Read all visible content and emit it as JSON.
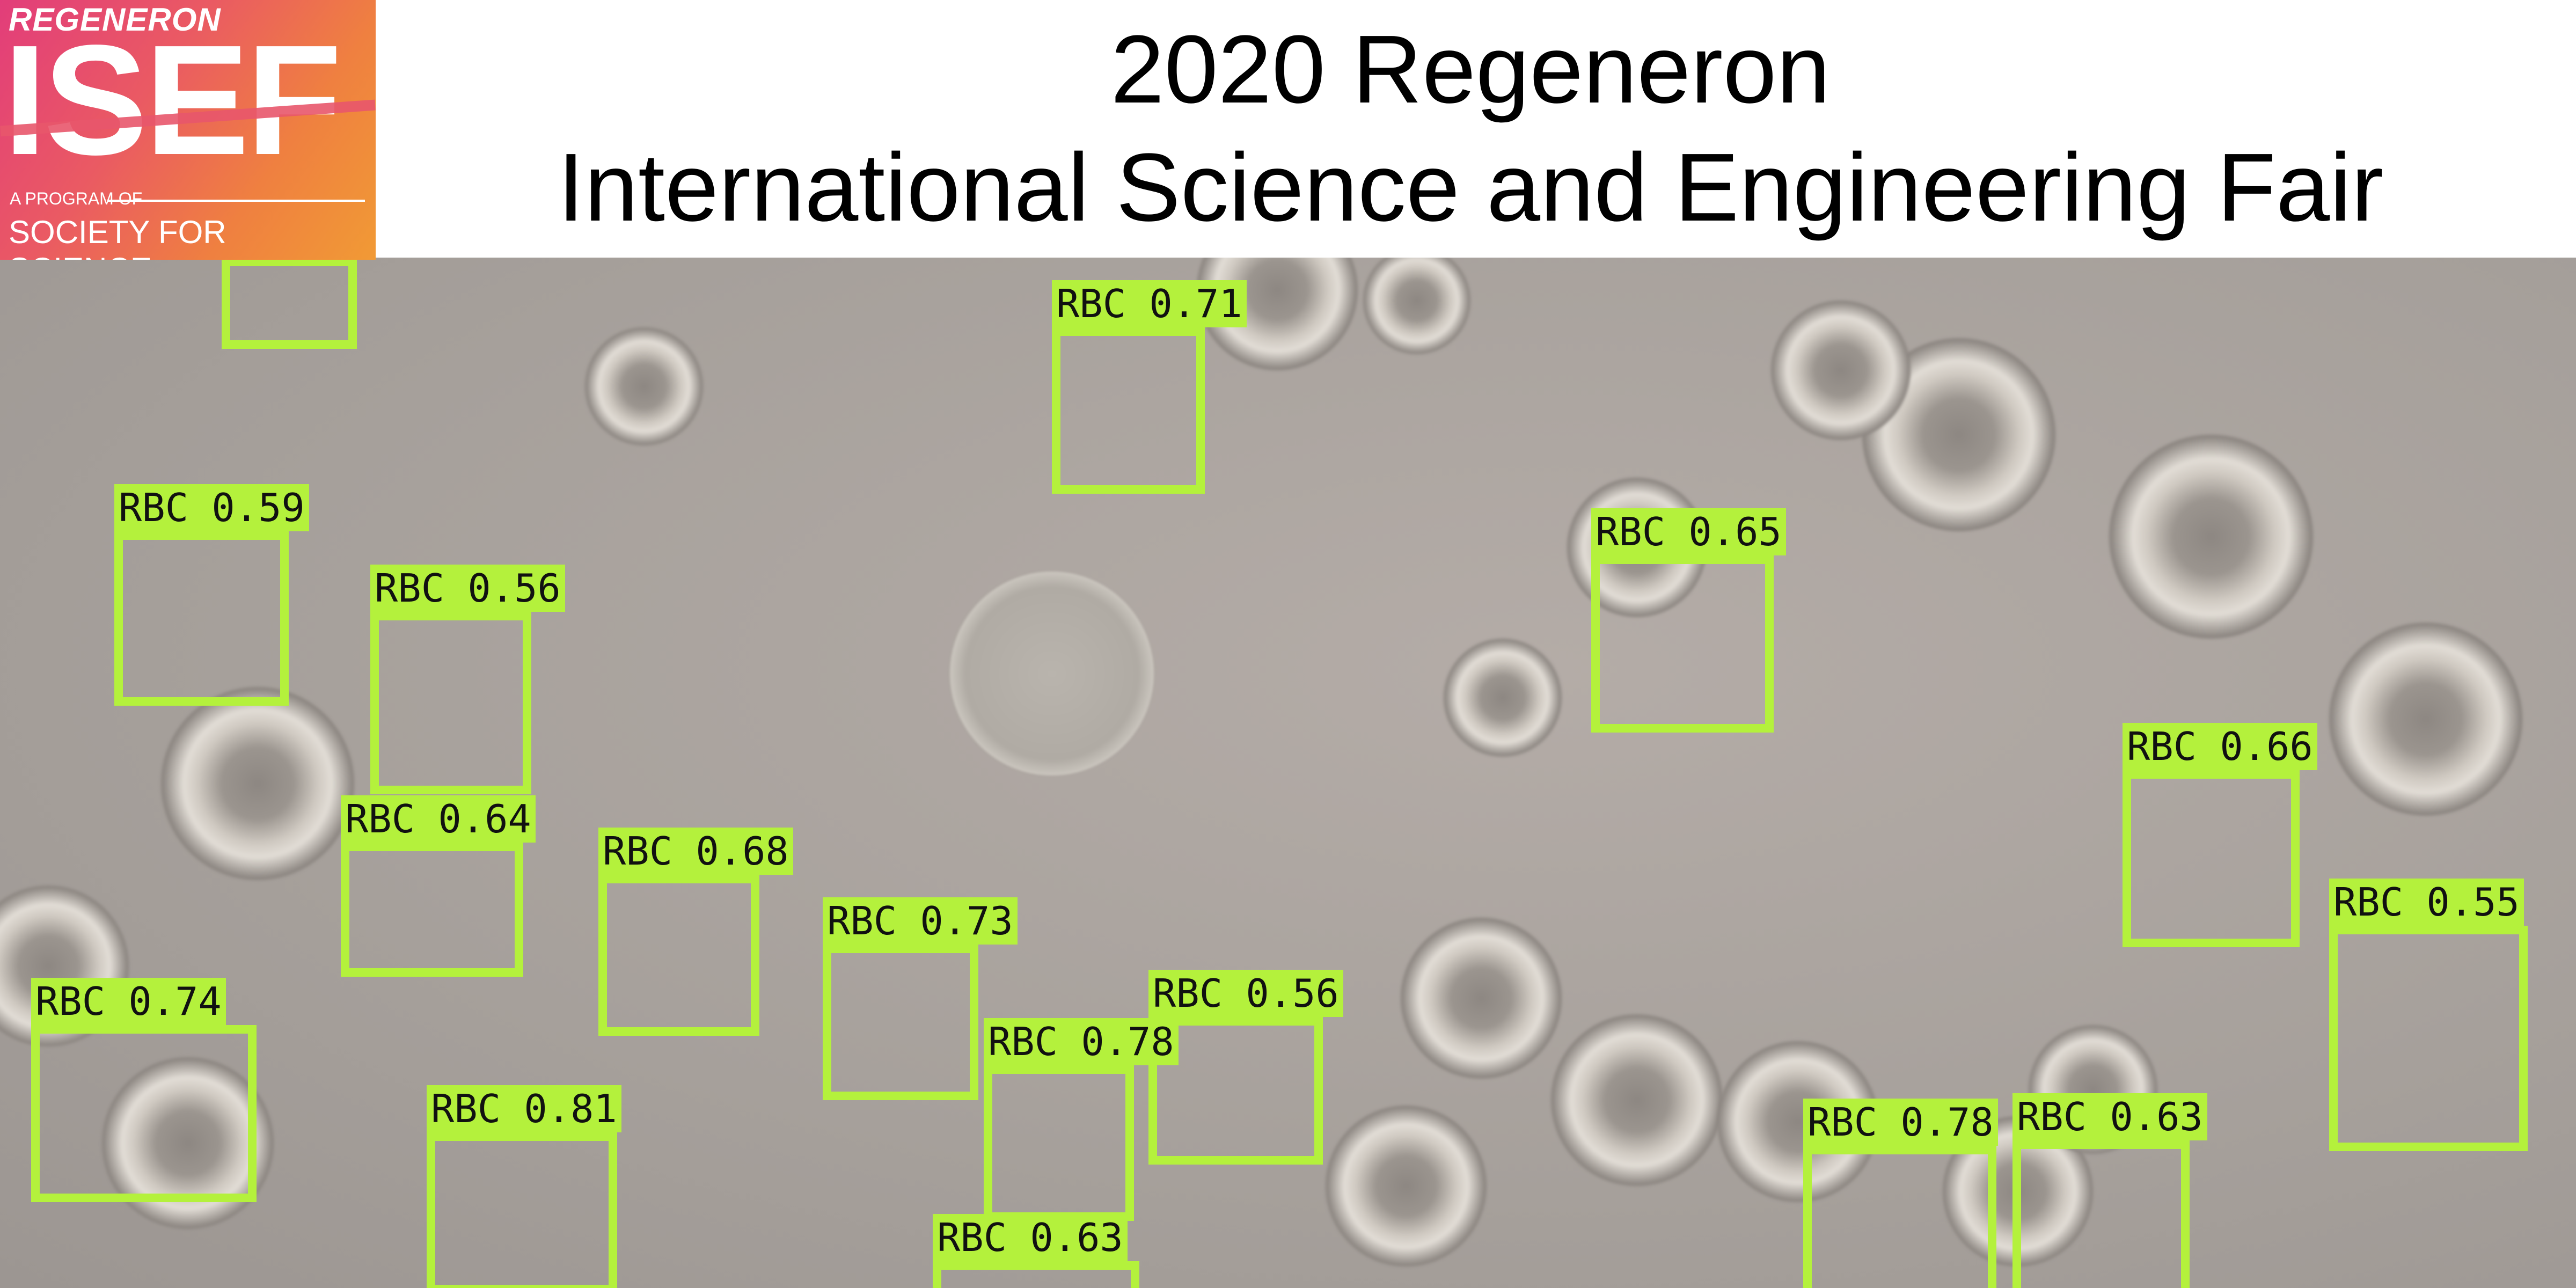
{
  "logo": {
    "brand": "REGENERON",
    "mark": "ISEF",
    "tagline": "A PROGRAM OF",
    "org": "SOCIETY FOR SCIENCE"
  },
  "title": {
    "line1": "2020 Regeneron",
    "line2": "International Science and Engineering Fair"
  },
  "detections": [
    {
      "label": "RBC 0.71"
    },
    {
      "label": "RBC 0.59"
    },
    {
      "label": "RBC 0.56"
    },
    {
      "label": "RBC 0.65"
    },
    {
      "label": "RBC 0.66"
    },
    {
      "label": "RBC 0.64"
    },
    {
      "label": "RBC 0.68"
    },
    {
      "label": "RBC 0.73"
    },
    {
      "label": "RBC 0.55"
    },
    {
      "label": "RBC 0.74"
    },
    {
      "label": "RBC 0.56"
    },
    {
      "label": "RBC 0.78"
    },
    {
      "label": "RBC 0.81"
    },
    {
      "label": "RBC 0.63"
    },
    {
      "label": "RBC 0.78"
    },
    {
      "label": "RBC 0.63"
    },
    {
      "label": ""
    }
  ],
  "colors": {
    "box": "#b4f13c",
    "background": "#a6a09b"
  }
}
